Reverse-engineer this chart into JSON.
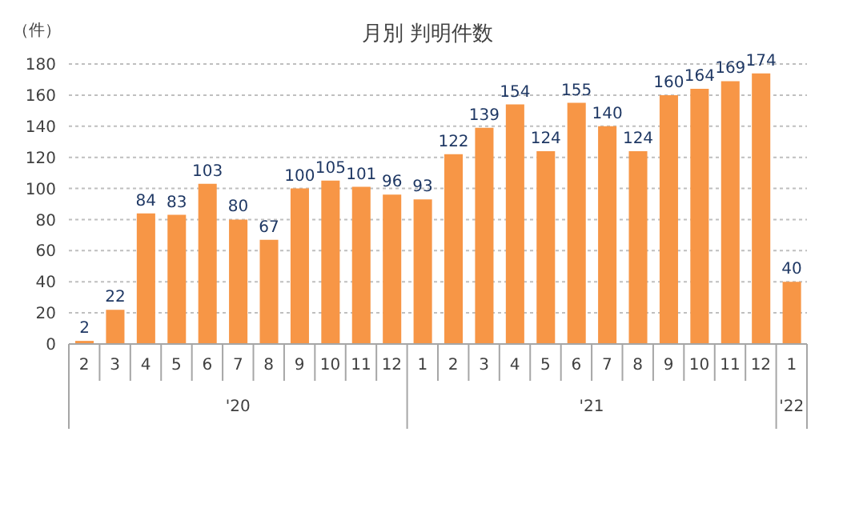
{
  "chart_data": {
    "type": "bar",
    "title": "月別 判明件数",
    "ylabel": "（件）",
    "categories": [
      "2",
      "3",
      "4",
      "5",
      "6",
      "7",
      "8",
      "9",
      "10",
      "11",
      "12",
      "1",
      "2",
      "3",
      "4",
      "5",
      "6",
      "7",
      "8",
      "9",
      "10",
      "11",
      "12",
      "1"
    ],
    "values": [
      2,
      22,
      84,
      83,
      103,
      80,
      67,
      100,
      105,
      101,
      96,
      93,
      122,
      139,
      154,
      124,
      155,
      140,
      124,
      160,
      164,
      169,
      174,
      40
    ],
    "color": "#f79646",
    "ylim": [
      0,
      180
    ],
    "yticks": [
      0,
      20,
      40,
      60,
      80,
      100,
      120,
      140,
      160,
      180
    ],
    "grid": "y",
    "data_labels": true,
    "annotations": [
      "'20",
      "'21",
      "'22"
    ]
  }
}
